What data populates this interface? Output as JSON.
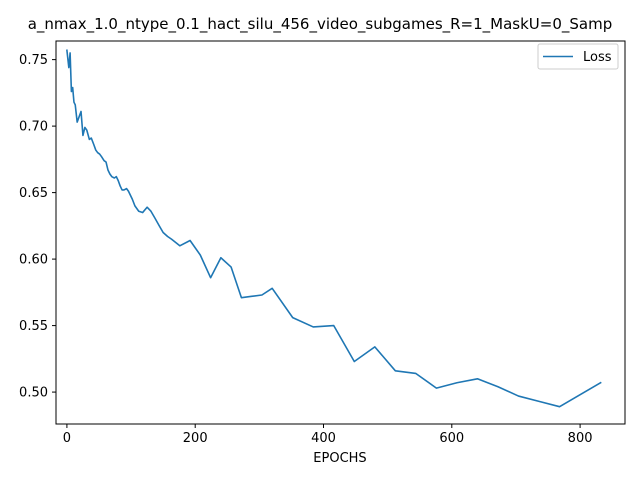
{
  "chart_data": {
    "type": "line",
    "title": "a_nmax_1.0_ntype_0.1_hact_silu_456_video_subgames_R=1_MaskU=0_Samp",
    "xlabel": "EPOCHS",
    "ylabel": "",
    "xlim": [
      -17,
      870
    ],
    "ylim": [
      0.476,
      0.764
    ],
    "xticks": [
      0,
      200,
      400,
      600,
      800
    ],
    "yticks": [
      0.5,
      0.55,
      0.6,
      0.65,
      0.7,
      0.75
    ],
    "grid": false,
    "legend_position": "upper right",
    "series": [
      {
        "name": "Loss",
        "color": "#1f77b4",
        "x": [
          0,
          3,
          5,
          7,
          9,
          11,
          13,
          16,
          19,
          22,
          25,
          28,
          31,
          35,
          38,
          42,
          45,
          48,
          51,
          54,
          58,
          61,
          64,
          67,
          70,
          74,
          77,
          80,
          83,
          86,
          89,
          93,
          96,
          99,
          102,
          106,
          112,
          118,
          125,
          131,
          137,
          144,
          150,
          157,
          163,
          176,
          192,
          208,
          224,
          240,
          256,
          272,
          288,
          304,
          320,
          352,
          384,
          416,
          448,
          480,
          512,
          544,
          576,
          608,
          640,
          672,
          704,
          736,
          768,
          800,
          832
        ],
        "y": [
          0.757,
          0.744,
          0.755,
          0.726,
          0.729,
          0.718,
          0.716,
          0.703,
          0.707,
          0.711,
          0.693,
          0.699,
          0.697,
          0.69,
          0.691,
          0.686,
          0.682,
          0.68,
          0.679,
          0.677,
          0.674,
          0.673,
          0.667,
          0.664,
          0.662,
          0.661,
          0.662,
          0.659,
          0.655,
          0.652,
          0.652,
          0.653,
          0.651,
          0.648,
          0.645,
          0.64,
          0.636,
          0.635,
          0.639,
          0.636,
          0.631,
          0.625,
          0.62,
          0.617,
          0.615,
          0.61,
          0.614,
          0.603,
          0.586,
          0.601,
          0.594,
          0.571,
          0.572,
          0.573,
          0.578,
          0.556,
          0.549,
          0.55,
          0.523,
          0.534,
          0.516,
          0.514,
          0.503,
          0.507,
          0.51,
          0.504,
          0.497,
          0.493,
          0.489,
          0.498,
          0.507
        ]
      }
    ]
  }
}
